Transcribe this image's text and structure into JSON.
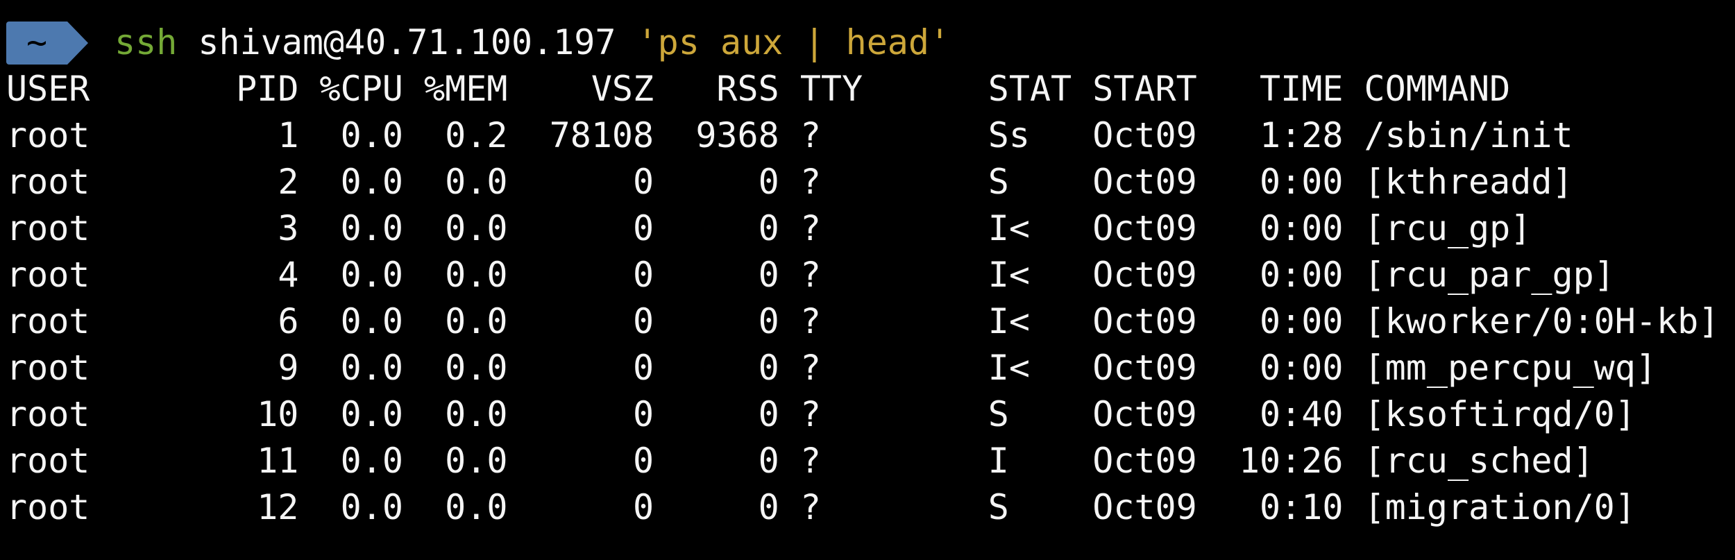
{
  "terminal": {
    "colors": {
      "background": "#000000",
      "foreground": "#f5f5f5",
      "prompt_badge": "#4d79af",
      "prompt_badge_text": "#000000",
      "command_program": "#74a936",
      "quoted_string": "#cda73a"
    },
    "prompt": {
      "badge_text": "~",
      "command": {
        "program": "ssh",
        "target": "shivam@40.71.100.197",
        "remote_command": "'ps aux | head'"
      }
    },
    "ps_table": {
      "headers": [
        "USER",
        "PID",
        "%CPU",
        "%MEM",
        "VSZ",
        "RSS",
        "TTY",
        "STAT",
        "START",
        "TIME",
        "COMMAND"
      ],
      "rows": [
        [
          "root",
          "1",
          "0.0",
          "0.2",
          "78108",
          "9368",
          "?",
          "Ss",
          "Oct09",
          "1:28",
          "/sbin/init"
        ],
        [
          "root",
          "2",
          "0.0",
          "0.0",
          "0",
          "0",
          "?",
          "S",
          "Oct09",
          "0:00",
          "[kthreadd]"
        ],
        [
          "root",
          "3",
          "0.0",
          "0.0",
          "0",
          "0",
          "?",
          "I<",
          "Oct09",
          "0:00",
          "[rcu_gp]"
        ],
        [
          "root",
          "4",
          "0.0",
          "0.0",
          "0",
          "0",
          "?",
          "I<",
          "Oct09",
          "0:00",
          "[rcu_par_gp]"
        ],
        [
          "root",
          "6",
          "0.0",
          "0.0",
          "0",
          "0",
          "?",
          "I<",
          "Oct09",
          "0:00",
          "[kworker/0:0H-kb]"
        ],
        [
          "root",
          "9",
          "0.0",
          "0.0",
          "0",
          "0",
          "?",
          "I<",
          "Oct09",
          "0:00",
          "[mm_percpu_wq]"
        ],
        [
          "root",
          "10",
          "0.0",
          "0.0",
          "0",
          "0",
          "?",
          "S",
          "Oct09",
          "0:40",
          "[ksoftirqd/0]"
        ],
        [
          "root",
          "11",
          "0.0",
          "0.0",
          "0",
          "0",
          "?",
          "I",
          "Oct09",
          "10:26",
          "[rcu_sched]"
        ],
        [
          "root",
          "12",
          "0.0",
          "0.0",
          "0",
          "0",
          "?",
          "S",
          "Oct09",
          "0:10",
          "[migration/0]"
        ]
      ]
    }
  }
}
